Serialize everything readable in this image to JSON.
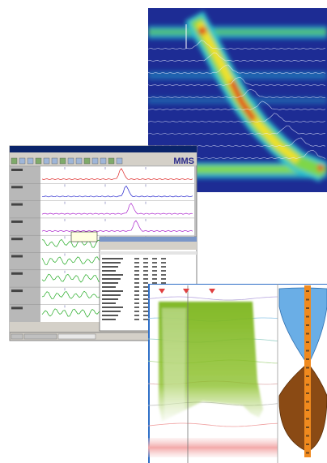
{
  "app": {
    "logo": "MMS"
  }
}
